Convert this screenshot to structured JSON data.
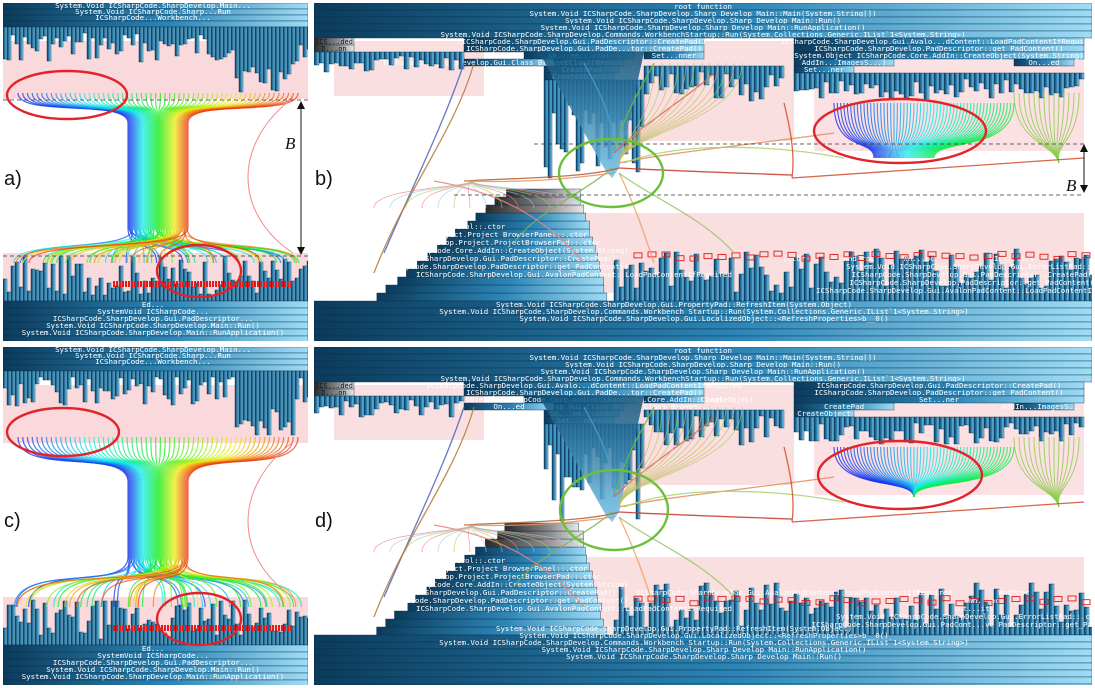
{
  "panels": [
    {
      "id": "a",
      "label": "a)"
    },
    {
      "id": "b",
      "label": "b)"
    },
    {
      "id": "c",
      "label": "c)"
    },
    {
      "id": "d",
      "label": "d)"
    }
  ],
  "gap_label": "B",
  "colors": {
    "bar_dark": "#0d4f78",
    "bar_mid": "#2d86b7",
    "bar_light": "#8fd0ee",
    "pink": "#f7c9cc",
    "red_marker": "#e21a1a",
    "ellipse_red": "#e0242a",
    "ellipse_green": "#6cbf3b"
  },
  "b_top_rows": [
    "root function",
    "System.Void ICSharpCode.SharpDevelop.Sharp Develop Main::Main(System.String[])",
    "System.Void ICSharpCode.SharpDevelop.Sharp Develop Main::Run()",
    "System.Void ICSharpCode.SharpDevelop.Sharp Develop Main::RunApplication()",
    "System.Void ICSharpCode.SharpDevelop.Commands.WorkbenchStartup::Run(System.Collections.Generic.IList`1<System.String>)"
  ],
  "b_top_labels": [
    "ICS...ded",
    "D...on",
    "ICSharpCode.SharpDevelop.Gui.PadDescriptor::CreatePad()",
    "ICSharpCode.SharpDevelop.Gui.Avalo...dContent::LoadPadContentIfRequired",
    "ICSharpCode.SharpDevelop.Gui.PadDe...tor::CreatePad()",
    "ICSharpCode.SharpDevelop.PadDescriptor::get_PadContent()",
    "Sh...ee::.ctor",
    "Set...nner",
    "Cl...ctor",
    "CreatePad",
    "CreateObject",
    "AddIn...ImagesS...)",
    "Set...ner",
    "On...ed",
    "System.Object ICSharpCode.Core.AddIn::CreateObject(System.String)",
    "ICSharpCode.SharpDevelop.Gui.Class BrowserClass Browse..."
  ],
  "b_bottom_labels": [
    "SetContent",
    "SetContent",
    "CreateObject",
    "ICSharpCode.Sh...tyPad::.ctor",
    "ICSharpCode.S...r::CreatePad",
    "ICSharpCode.Sh...ntainer::.ctor",
    "ICSharpCode.Sharp D...wser Control::.ctor",
    "ICSharpCode.SharpDevelop.Project.Project BrowserPanel::.ctor",
    "ICSharpCode.SharpDevelop.Project.ProjectBrowserPad::.ctor",
    "System.Object ICSharpCode.Core.AddIn::CreateObject(System.String)",
    "ICSharpCode.SharpDevelop.Gui.PadDescriptor::CreatePad()",
    "ICSharpCode.SharpDevelop.PadDescriptor::get_PadContent()",
    "ICSharpCode.SharpDevelop.Gui.AvalonPadContent::LoadPadContentIfRequired",
    "System.Void ICSharpCode.SharpDevelop.Gui.PropertyPad::RefreshItem(System.Object)",
    "System.Void ICSharpCode.SharpDevelop.Commands.Workbench Startup::Run(System.Collections.Generic.IList`1<System.String>)",
    "System.Void ICSharpCode.SharpDevelop.Gui.LocalizedObject::<RefreshProperties>b__0()",
    ".ctor",
    "WndProc",
    "Wn...oc",
    "Int...its",
    "System.Void ICSharpCode.SharpDevelop.Gui.ErrorListPad::.ctor()",
    "ICSharpCode.SharpDevelop.Gui.PadDescriptor::CreatePad()",
    "ICSharpCode.SharpDevelop.PadDescriptor::get_PadContent()",
    "ICSharpCode.SharpDevelop.Gui.AvalonPadContent::LoadPadContentIfRequired"
  ],
  "d_top_rows": [
    "root function",
    "System.Void ICSharpCode.SharpDevelop.Sharp Develop Main::Main(System.String[])",
    "System.Void ICSharpCode.SharpDevelop.Sharp Develop Main::Run()",
    "System.Void ICSharpCode.SharpDevelop.Sharp Develop Main::RunApplication()",
    "System.Void ICSharpCode.SharpDevelop.Commands.WorkbenchStartup::Run(System.Collections.Generic.IList`1<System.String>)"
  ],
  "d_top_labels": [
    "ICS...ded",
    "D...on",
    "ICSharpCode.SharpDevelop.Gui.Avalo...dContent::LoadPadContentIfRequired",
    "ICSharpCode.SharpDevelop.Gui.PadDescriptor::CreatePad()",
    "ICSharpCode.SharpDevelop.Gui.PadDe...tor::CreatePad()",
    "ICSharpCode.SharpDevelop.PadDescriptor::get_PadContent()",
    "System.Object ICSharpCode.Core.AddIn::CreateObject(System.String)",
    "ICSharpCode.Core.AddIn::CreateObject",
    "ICSharpCode.SharpDevelop.Gui.Class BrowserClass Browse...",
    "Sh...ee::.ctor",
    "Set...nner",
    "CreatePad",
    "CreateObject",
    "AddIn...ImagesS...)",
    "Set...ner",
    "On...ed"
  ],
  "d_bottom_labels": [
    "SetContent",
    "SetContent",
    "CreateObject",
    "ICSharpCode.Sh...tyPad::.ctor",
    "ICSharpCode.S...r::CreatePad",
    "ICSharpCode.Sh...ntainer::.ctor",
    "ICSharpCode.Sharp D...wser Control::.ctor",
    "ICSharpCode.SharpDevelop.Project.Project BrowserPanel::.ctor",
    "ICSharpCode.SharpDevelop.Project.ProjectBrowserPad::.ctor",
    "System.Object ICSharpCode.Core.AddIn::CreateObject(System.String)",
    "ICSharpCode.SharpDevelop.Gui.PadDescriptor::CreatePad()",
    "ICSharpCode.SharpDevelop.PadDescriptor::get_PadContent()",
    "ICSharpCode.SharpDevelop.Gui.AvalonPadContent::LoadPadContentIfRequired",
    "System.Void ICSharpCode.SharpDevelop.Gui.PropertyPad::RefreshItem(System.Object)",
    "System.Void ICSharpCode.SharpDevelop.Gui.LocalizedObject::<RefreshProperties>b__0()",
    "System.Void ICSharpCode.SharpDevelop.Commands.Workbench Startup::Run(System.Collections.Generic.IList`1<System.String>)",
    "System.Void ICSharpCode.SharpDevelop.Sharp Develop Main::RunApplication()",
    "System.Void ICSharpCode.SharpDevelop.Sharp Develop Main::Run()",
    ".ctor",
    "WndProc",
    "Wn...oc",
    "Int...its",
    "System.Void ICSharpCode.SharpDevelop.Gui.ErrorListPad::.ctor()",
    "ICSharpCode.SharpDevelop.Gui.PadCont...ve PadDescriptor::get_PadContent()",
    "ICSharpCode.SharpDevelop.Gui.AvalonPadContent::LoadPadContentIfRequired"
  ],
  "ac_top_labels": [
    "System.Void ICSharpCode.SharpDevelop.Main...",
    "System.Void ICSharpCode.Sharp...Run",
    "ICSharpCode...Workbench..."
  ],
  "ac_bottom_labels": [
    "Ed...",
    "SystemVoid ICSharpCode...",
    "ICSharpCode.SharpDevelop.Gui.PadDescriptor...",
    "System.Void ICSharpCode.SharpDevelop.Main::Run()",
    "System.Void ICSharpCode.SharpDevelop.Main::RunApplication()"
  ]
}
